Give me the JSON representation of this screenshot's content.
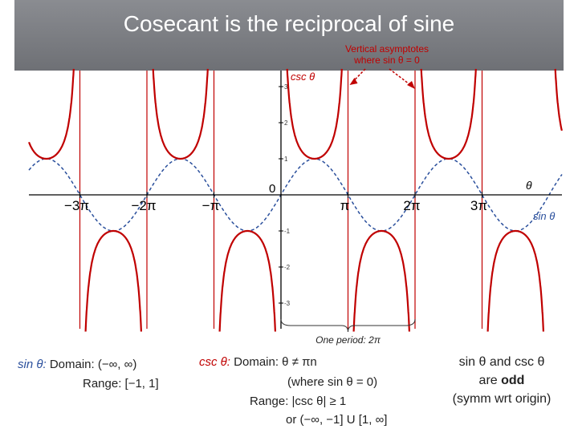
{
  "title": "Cosecant is the reciprocal of sine",
  "callout": {
    "line1": "Vertical asymptotes",
    "line2": "where sin θ = 0"
  },
  "graph": {
    "y_axis_label": "csc θ",
    "x_axis_label": "θ",
    "sin_label": "sin θ",
    "origin_label": "0",
    "x_ticks": [
      "−3π",
      "−2π",
      "−π",
      "π",
      "2π",
      "3π"
    ],
    "y_ticks": [
      "3",
      "2",
      "1",
      "-1",
      "-2",
      "-3"
    ],
    "period_label": "One period: 2π",
    "colors": {
      "csc": "#c00000",
      "sin": "#2a4f9c",
      "asymptote": "#c00000",
      "axis": "#000000"
    }
  },
  "sin_info": {
    "name": "sin θ:",
    "domain": "Domain: (−∞, ∞)",
    "range": "Range: [−1, 1]"
  },
  "csc_info": {
    "name": "csc θ:",
    "domain": "Domain: θ ≠ πn",
    "note": "(where sin θ = 0)",
    "range1": "Range: |csc θ| ≥ 1",
    "range2": "or (−∞, −1] U [1, ∞]"
  },
  "odd_note": {
    "line1": "sin θ and csc θ",
    "line2_prefix": "are ",
    "line2_bold": "odd",
    "line3": "(symm wrt origin)"
  }
}
